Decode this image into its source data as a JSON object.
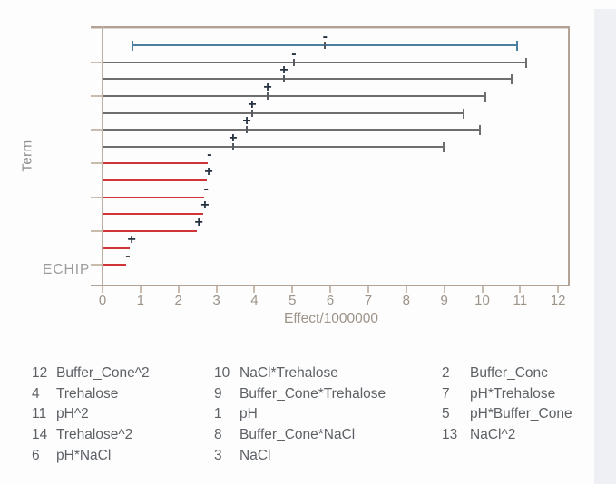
{
  "window": {
    "background": "#fdfdfd",
    "edge_band_color": "#eef0f3"
  },
  "chart_data": {
    "type": "bar",
    "subtype": "pareto-effects-with-confidence-whiskers",
    "title": "",
    "ylabel": "Term",
    "xlabel": "Effect/1000000",
    "watermark": "ECHIP",
    "xlim": [
      0,
      12.3
    ],
    "grid": false,
    "xticks": [
      "0",
      "1",
      "2",
      "3",
      "4",
      "5",
      "6",
      "7",
      "8",
      "9",
      "10",
      "11",
      "12"
    ],
    "rows": [
      {
        "sign": "-",
        "effect": 5.86,
        "ci_low": 0.79,
        "ci_high": 10.93,
        "style": "blue"
      },
      {
        "sign": "-",
        "effect": 5.04,
        "ci_low": 0,
        "ci_high": 11.17,
        "style": "gray"
      },
      {
        "sign": "+",
        "effect": 4.78,
        "ci_low": 0,
        "ci_high": 10.78,
        "style": "gray"
      },
      {
        "sign": "+",
        "effect": 4.35,
        "ci_low": 0,
        "ci_high": 10.09,
        "style": "gray"
      },
      {
        "sign": "+",
        "effect": 3.94,
        "ci_low": 0,
        "ci_high": 9.51,
        "style": "gray"
      },
      {
        "sign": "+",
        "effect": 3.8,
        "ci_low": 0,
        "ci_high": 9.94,
        "style": "gray"
      },
      {
        "sign": "+",
        "effect": 3.44,
        "ci_low": 0,
        "ci_high": 8.99,
        "style": "gray"
      },
      {
        "sign": "-",
        "effect": 2.77,
        "ci_low": 0,
        "ci_high": 2.77,
        "style": "red"
      },
      {
        "sign": "+",
        "effect": 2.75,
        "ci_low": 0,
        "ci_high": 2.75,
        "style": "red"
      },
      {
        "sign": "-",
        "effect": 2.68,
        "ci_low": 0,
        "ci_high": 2.68,
        "style": "red"
      },
      {
        "sign": "+",
        "effect": 2.65,
        "ci_low": 0,
        "ci_high": 2.65,
        "style": "red"
      },
      {
        "sign": "+",
        "effect": 2.49,
        "ci_low": 0,
        "ci_high": 2.49,
        "style": "red"
      },
      {
        "sign": "+",
        "effect": 0.72,
        "ci_low": 0,
        "ci_high": 0.72,
        "style": "red"
      },
      {
        "sign": "-",
        "effect": 0.62,
        "ci_low": 0,
        "ci_high": 0.62,
        "style": "red"
      }
    ]
  },
  "legend": {
    "columns": [
      {
        "entries": [
          {
            "num": "12",
            "label": "Buffer_Cone^2"
          },
          {
            "num": "4",
            "label": "Trehalose"
          },
          {
            "num": "11",
            "label": "pH^2"
          },
          {
            "num": "14",
            "label": "Trehalose^2"
          },
          {
            "num": "6",
            "label": "pH*NaCl"
          }
        ]
      },
      {
        "entries": [
          {
            "num": "10",
            "label": "NaCl*Trehalose"
          },
          {
            "num": "9",
            "label": "Buffer_Cone*Trehalose"
          },
          {
            "num": "1",
            "label": "pH"
          },
          {
            "num": "8",
            "label": "Buffer_Cone*NaCl"
          },
          {
            "num": "3",
            "label": "NaCl"
          }
        ]
      },
      {
        "entries": [
          {
            "num": "2",
            "label": "Buffer_Conc"
          },
          {
            "num": "7",
            "label": "pH*Trehalose"
          },
          {
            "num": "5",
            "label": "pH*Buffer_Cone"
          },
          {
            "num": "13",
            "label": "NaCl^2"
          }
        ]
      }
    ]
  },
  "colors": {
    "blue_line": "#4c80a0",
    "gray_line": "#6e6e6e",
    "red_line": "#d03438",
    "sign": "#243140",
    "effect_tick": "#565b61",
    "frame": "#b2a396",
    "frame_light": "#c9bcae",
    "axis_text": "#9c9389",
    "legend_text": "#5d6166",
    "muted_text": "#8d8d8d"
  }
}
